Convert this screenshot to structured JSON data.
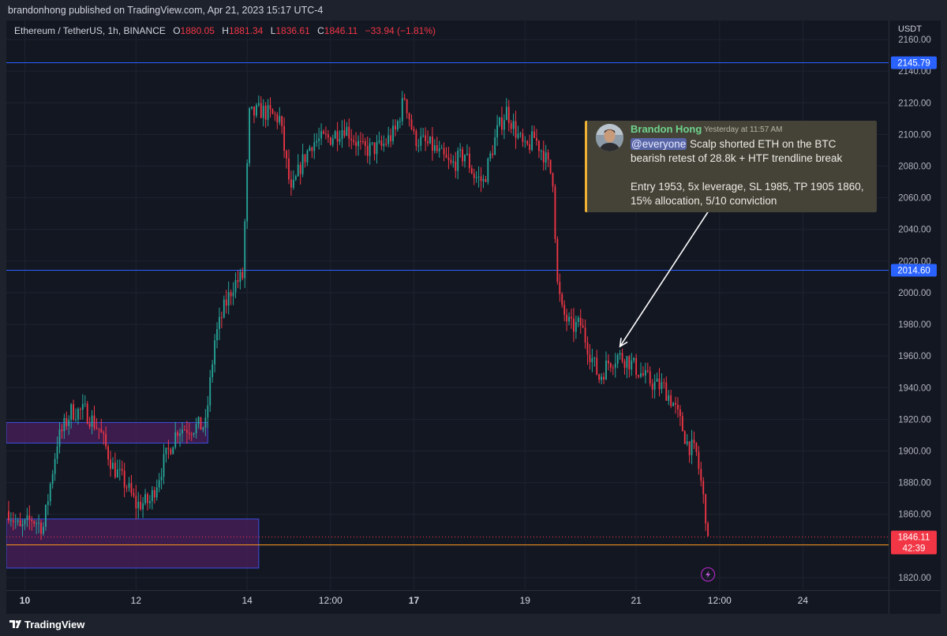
{
  "header": {
    "publisher_line": "brandonhong published on TradingView.com, Apr 21, 2023 15:17 UTC-4"
  },
  "symbol": {
    "name": "Ethereum / TetherUS, 1h, BINANCE",
    "open_label": "O",
    "open": "1880.05",
    "high_label": "H",
    "high": "1881.34",
    "low_label": "L",
    "low": "1836.61",
    "close_label": "C",
    "close": "1846.11",
    "change": "−33.94 (−1.81%)"
  },
  "currency": "USDT",
  "footer": {
    "brand": "TradingView"
  },
  "colors": {
    "background": "#131722",
    "up": "#26a69a",
    "down": "#f23645",
    "level_line": "#2962ff",
    "zone_fill": "#4a1f5c",
    "orange_line": "#f7931a"
  },
  "message": {
    "author": "Brandon Hong",
    "time": "Yesterday at 11:57 AM",
    "mention": "@everyone",
    "line1_rest": " Scalp shorted ETH on the BTC bearish retest of 28.8k + HTF trendline break",
    "line2": "Entry 1953, 5x leverage, SL 1985, TP 1905 1860, 15% allocation, 5/10 conviction"
  },
  "chart_data": {
    "type": "candlestick",
    "symbol": "ETH/USDT",
    "timeframe": "1h",
    "ylim": [
      1812,
      2172
    ],
    "y_ticks": [
      1820,
      1840,
      1860,
      1880,
      1900,
      1920,
      1940,
      1960,
      1980,
      2000,
      2020,
      2040,
      2060,
      2080,
      2100,
      2120,
      2140,
      2160
    ],
    "x_tick_labels": [
      {
        "label": "10",
        "bold": true,
        "t": 2
      },
      {
        "label": "12",
        "bold": false,
        "t": 50
      },
      {
        "label": "14",
        "bold": false,
        "t": 98
      },
      {
        "label": "12:00",
        "bold": false,
        "t": 134
      },
      {
        "label": "17",
        "bold": true,
        "t": 170
      },
      {
        "label": "19",
        "bold": false,
        "t": 218
      },
      {
        "label": "21",
        "bold": false,
        "t": 266
      },
      {
        "label": "12:00",
        "bold": false,
        "t": 302
      },
      {
        "label": "24",
        "bold": false,
        "t": 338
      }
    ],
    "t_range": [
      -6,
      375
    ],
    "price_levels": [
      {
        "value": 2145.79,
        "label": "2145.79",
        "color": "#2962ff"
      },
      {
        "value": 2014.6,
        "label": "2014.60",
        "color": "#2962ff"
      },
      {
        "value": 1841.0,
        "label": "1841.00",
        "color": "#f7931a"
      }
    ],
    "last_price": {
      "value": 1846.11,
      "label": "1846.11",
      "countdown": "42:39"
    },
    "zones": [
      {
        "t0": -6,
        "t1": 81,
        "low": 1905,
        "high": 1918
      },
      {
        "t0": -6,
        "t1": 103,
        "low": 1826,
        "high": 1857
      }
    ],
    "arrow": {
      "from_t": 301,
      "from_price": 2060,
      "to_t": 259,
      "to_price": 1966
    },
    "points": [
      [
        -5,
        1862
      ],
      [
        0,
        1850
      ],
      [
        5,
        1857
      ],
      [
        10,
        1852
      ],
      [
        16,
        1906
      ],
      [
        22,
        1925
      ],
      [
        28,
        1925
      ],
      [
        34,
        1914
      ],
      [
        40,
        1890
      ],
      [
        46,
        1878
      ],
      [
        50,
        1866
      ],
      [
        56,
        1868
      ],
      [
        62,
        1893
      ],
      [
        68,
        1914
      ],
      [
        74,
        1915
      ],
      [
        80,
        1916
      ],
      [
        84,
        1970
      ],
      [
        88,
        1990
      ],
      [
        92,
        2005
      ],
      [
        96,
        2010
      ],
      [
        99,
        2112
      ],
      [
        104,
        2115
      ],
      [
        112,
        2110
      ],
      [
        117,
        2062
      ],
      [
        121,
        2080
      ],
      [
        126,
        2095
      ],
      [
        134,
        2098
      ],
      [
        140,
        2105
      ],
      [
        148,
        2090
      ],
      [
        156,
        2092
      ],
      [
        162,
        2102
      ],
      [
        166,
        2124
      ],
      [
        170,
        2098
      ],
      [
        178,
        2092
      ],
      [
        186,
        2080
      ],
      [
        192,
        2088
      ],
      [
        196,
        2074
      ],
      [
        200,
        2070
      ],
      [
        206,
        2102
      ],
      [
        210,
        2115
      ],
      [
        214,
        2102
      ],
      [
        218,
        2090
      ],
      [
        222,
        2098
      ],
      [
        226,
        2088
      ],
      [
        230,
        2072
      ],
      [
        232,
        2005
      ],
      [
        234,
        1988
      ],
      [
        238,
        1978
      ],
      [
        242,
        1980
      ],
      [
        246,
        1962
      ],
      [
        250,
        1946
      ],
      [
        254,
        1956
      ],
      [
        258,
        1960
      ],
      [
        262,
        1958
      ],
      [
        266,
        1952
      ],
      [
        270,
        1946
      ],
      [
        274,
        1942
      ],
      [
        278,
        1940
      ],
      [
        282,
        1930
      ],
      [
        286,
        1914
      ],
      [
        288,
        1905
      ],
      [
        292,
        1898
      ],
      [
        294,
        1880
      ],
      [
        296,
        1860
      ],
      [
        297,
        1846
      ]
    ]
  }
}
